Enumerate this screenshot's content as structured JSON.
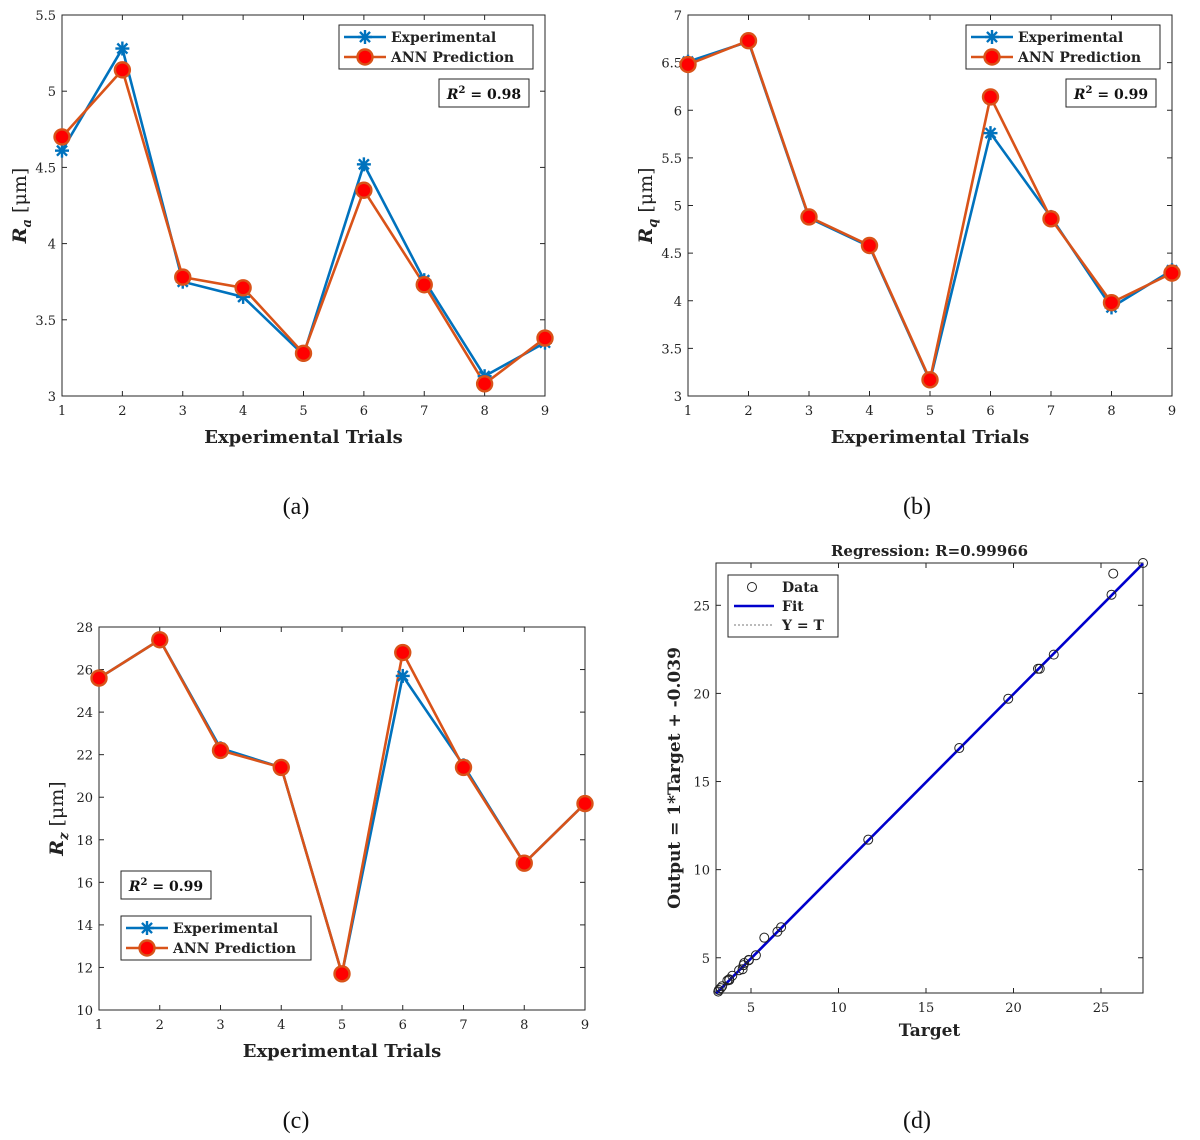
{
  "chart_data": [
    {
      "id": "a",
      "type": "line",
      "caption": "(a)",
      "xlabel": "Experimental Trials",
      "ylabel_main": "R",
      "ylabel_sub": "a",
      "ylabel_unit": "[μm]",
      "x": [
        1,
        2,
        3,
        4,
        5,
        6,
        7,
        8,
        9
      ],
      "xlim": [
        1,
        9
      ],
      "ylim": [
        3,
        5.5
      ],
      "xticks": [
        "1",
        "2",
        "3",
        "4",
        "5",
        "6",
        "7",
        "8",
        "9"
      ],
      "yticks": [
        "3",
        "3.5",
        "4",
        "4.5",
        "5",
        "5.5"
      ],
      "series": [
        {
          "name": "Experimental",
          "color": "#0072BD",
          "marker": "asterisk",
          "values": [
            4.61,
            5.28,
            3.75,
            3.65,
            3.27,
            4.52,
            3.76,
            3.13,
            3.35
          ]
        },
        {
          "name": "ANN Prediction",
          "color": "#D95319",
          "marker": "circle",
          "values": [
            4.7,
            5.14,
            3.78,
            3.71,
            3.28,
            4.35,
            3.73,
            3.08,
            3.38
          ]
        }
      ],
      "legend_position": "top-right",
      "annotation": {
        "r2_label": "R",
        "r2_sup": "2",
        "r2_value": " = 0.98"
      }
    },
    {
      "id": "b",
      "type": "line",
      "caption": "(b)",
      "xlabel": "Experimental Trials",
      "ylabel_main": "R",
      "ylabel_sub": "q",
      "ylabel_unit": "[μm]",
      "x": [
        1,
        2,
        3,
        4,
        5,
        6,
        7,
        8,
        9
      ],
      "xlim": [
        1,
        9
      ],
      "ylim": [
        3,
        7
      ],
      "xticks": [
        "1",
        "2",
        "3",
        "4",
        "5",
        "6",
        "7",
        "8",
        "9"
      ],
      "yticks": [
        "3",
        "3.5",
        "4",
        "4.5",
        "5",
        "5.5",
        "6",
        "6.5",
        "7"
      ],
      "series": [
        {
          "name": "Experimental",
          "color": "#0072BD",
          "marker": "asterisk",
          "values": [
            6.51,
            6.72,
            4.87,
            4.57,
            3.16,
            5.76,
            4.88,
            3.93,
            4.32
          ]
        },
        {
          "name": "ANN Prediction",
          "color": "#D95319",
          "marker": "circle",
          "values": [
            6.48,
            6.73,
            4.88,
            4.58,
            3.17,
            6.14,
            4.86,
            3.98,
            4.29
          ]
        }
      ],
      "legend_position": "top-right",
      "annotation": {
        "r2_label": "R",
        "r2_sup": "2",
        "r2_value": " = 0.99"
      }
    },
    {
      "id": "c",
      "type": "line",
      "caption": "(c)",
      "xlabel": "Experimental Trials",
      "ylabel_main": "R",
      "ylabel_sub": "z",
      "ylabel_unit": "[μm]",
      "x": [
        1,
        2,
        3,
        4,
        5,
        6,
        7,
        8,
        9
      ],
      "xlim": [
        1,
        9
      ],
      "ylim": [
        10,
        28
      ],
      "xticks": [
        "1",
        "2",
        "3",
        "4",
        "5",
        "6",
        "7",
        "8",
        "9"
      ],
      "yticks": [
        "10",
        "12",
        "14",
        "16",
        "18",
        "20",
        "22",
        "24",
        "26",
        "28"
      ],
      "series": [
        {
          "name": "Experimental",
          "color": "#0072BD",
          "marker": "asterisk",
          "values": [
            25.6,
            27.4,
            22.3,
            21.4,
            11.7,
            25.7,
            21.5,
            16.9,
            19.7
          ]
        },
        {
          "name": "ANN Prediction",
          "color": "#D95319",
          "marker": "circle",
          "values": [
            25.6,
            27.4,
            22.2,
            21.4,
            11.7,
            26.8,
            21.4,
            16.9,
            19.7
          ]
        }
      ],
      "legend_position": "bottom-left",
      "annotation": {
        "r2_label": "R",
        "r2_sup": "2",
        "r2_value": " = 0.99"
      }
    },
    {
      "id": "d",
      "type": "scatter",
      "caption": "(d)",
      "title": "Regression:  R=0.99966",
      "xlabel": "Target",
      "ylabel": "Output  = 1*Target + -0.039",
      "xlim": [
        3,
        27.4
      ],
      "ylim": [
        3,
        27.4
      ],
      "xticks": [
        5,
        10,
        15,
        20,
        25
      ],
      "yticks": [
        5,
        10,
        15,
        20,
        25
      ],
      "points": [
        [
          3.13,
          3.08
        ],
        [
          3.16,
          3.17
        ],
        [
          3.27,
          3.28
        ],
        [
          3.35,
          3.38
        ],
        [
          3.65,
          3.71
        ],
        [
          3.75,
          3.78
        ],
        [
          3.76,
          3.73
        ],
        [
          3.93,
          3.98
        ],
        [
          4.32,
          4.29
        ],
        [
          4.52,
          4.35
        ],
        [
          4.57,
          4.58
        ],
        [
          4.61,
          4.7
        ],
        [
          4.87,
          4.88
        ],
        [
          4.88,
          4.86
        ],
        [
          5.28,
          5.14
        ],
        [
          5.76,
          6.14
        ],
        [
          6.51,
          6.48
        ],
        [
          6.72,
          6.73
        ],
        [
          11.7,
          11.7
        ],
        [
          16.9,
          16.9
        ],
        [
          19.7,
          19.7
        ],
        [
          21.4,
          21.4
        ],
        [
          21.5,
          21.4
        ],
        [
          22.3,
          22.2
        ],
        [
          25.6,
          25.6
        ],
        [
          25.7,
          26.8
        ],
        [
          27.4,
          27.4
        ]
      ],
      "fit": {
        "slope": 1,
        "intercept": -0.039,
        "color": "#0000CC"
      },
      "legend_position": "top-left",
      "legend": [
        "Data",
        "Fit",
        "Y = T"
      ]
    }
  ]
}
